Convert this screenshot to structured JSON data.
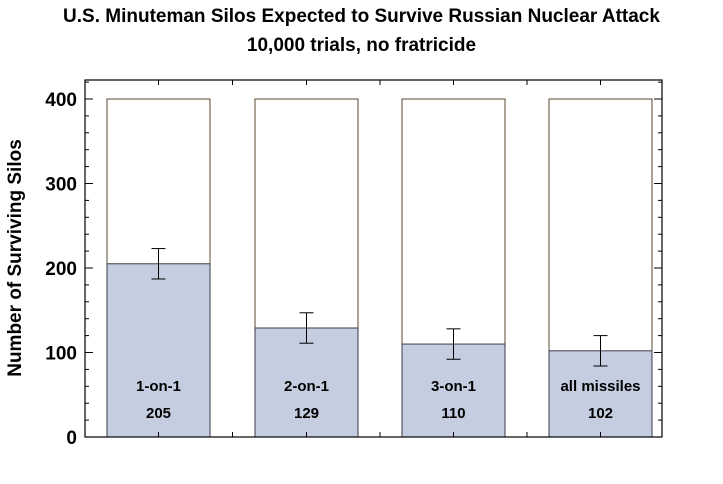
{
  "chart_data": {
    "type": "bar",
    "title": "U.S. Minuteman Silos Expected to Survive Russian Nuclear Attack",
    "subtitle": "10,000 trials, no fratricide",
    "xlabel": "",
    "ylabel": "Number of Surviving Silos",
    "ylim": [
      0,
      400
    ],
    "yticks": [
      0,
      100,
      200,
      300,
      400
    ],
    "capacity": 400,
    "categories": [
      "1-on-1",
      "2-on-1",
      "3-on-1",
      "all missiles"
    ],
    "values": [
      205,
      129,
      110,
      102
    ],
    "value_labels": [
      "205",
      "129",
      "110",
      "102"
    ],
    "error": [
      18,
      18,
      18,
      18
    ],
    "grid": false,
    "colors": {
      "fill": "#c5cde0",
      "bar_edge": "#3a3a4a",
      "capacity_edge": "#5a4a30"
    }
  }
}
